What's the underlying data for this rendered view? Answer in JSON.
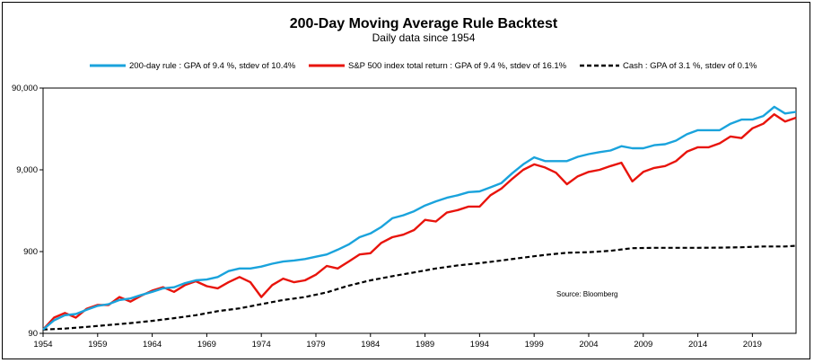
{
  "chart_data": {
    "type": "line",
    "title": "200-Day Moving Average Rule Backtest",
    "subtitle": "Daily data since 1954",
    "xlabel": "",
    "ylabel": "",
    "y_scale": "log",
    "xlim": [
      1954,
      2023
    ],
    "ylim": [
      90,
      90000
    ],
    "x_ticks": [
      "1954",
      "1959",
      "1964",
      "1969",
      "1974",
      "1979",
      "1984",
      "1989",
      "1994",
      "1999",
      "2004",
      "2009",
      "2014",
      "2019"
    ],
    "y_ticks": [
      "90",
      "900",
      "9,000",
      "90,000"
    ],
    "annotation": "Source: Bloomberg",
    "legend_position": "top",
    "grid": false,
    "series": [
      {
        "name": "200-day rule : GPA of 9.4 %, stdev of 10.4%",
        "color": "#1aa3dc",
        "style": "solid",
        "points": [
          [
            1954,
            100
          ],
          [
            1955,
            130
          ],
          [
            1956,
            150
          ],
          [
            1957,
            155
          ],
          [
            1958,
            175
          ],
          [
            1959,
            195
          ],
          [
            1960,
            205
          ],
          [
            1961,
            230
          ],
          [
            1962,
            240
          ],
          [
            1963,
            265
          ],
          [
            1964,
            290
          ],
          [
            1965,
            320
          ],
          [
            1966,
            330
          ],
          [
            1967,
            370
          ],
          [
            1968,
            400
          ],
          [
            1969,
            410
          ],
          [
            1970,
            440
          ],
          [
            1971,
            520
          ],
          [
            1972,
            560
          ],
          [
            1973,
            560
          ],
          [
            1974,
            590
          ],
          [
            1975,
            640
          ],
          [
            1976,
            680
          ],
          [
            1977,
            700
          ],
          [
            1978,
            730
          ],
          [
            1979,
            780
          ],
          [
            1980,
            830
          ],
          [
            1981,
            950
          ],
          [
            1982,
            1100
          ],
          [
            1983,
            1350
          ],
          [
            1984,
            1500
          ],
          [
            1985,
            1800
          ],
          [
            1986,
            2300
          ],
          [
            1987,
            2500
          ],
          [
            1988,
            2800
          ],
          [
            1989,
            3300
          ],
          [
            1990,
            3700
          ],
          [
            1991,
            4100
          ],
          [
            1992,
            4400
          ],
          [
            1993,
            4800
          ],
          [
            1994,
            4900
          ],
          [
            1995,
            5500
          ],
          [
            1996,
            6200
          ],
          [
            1997,
            8200
          ],
          [
            1998,
            10500
          ],
          [
            1999,
            12800
          ],
          [
            2000,
            11500
          ],
          [
            2001,
            11500
          ],
          [
            2002,
            11500
          ],
          [
            2003,
            13000
          ],
          [
            2004,
            14000
          ],
          [
            2005,
            14800
          ],
          [
            2006,
            15500
          ],
          [
            2007,
            17500
          ],
          [
            2008,
            16500
          ],
          [
            2009,
            16500
          ],
          [
            2010,
            18000
          ],
          [
            2011,
            18500
          ],
          [
            2012,
            20500
          ],
          [
            2013,
            24500
          ],
          [
            2014,
            27500
          ],
          [
            2015,
            27500
          ],
          [
            2016,
            27500
          ],
          [
            2017,
            33000
          ],
          [
            2018,
            37000
          ],
          [
            2019,
            37000
          ],
          [
            2020,
            41000
          ],
          [
            2021,
            53000
          ],
          [
            2022,
            44000
          ],
          [
            2023,
            46000
          ]
        ]
      },
      {
        "name": "S&P 500 index total return : GPA of 9.4 %, stdev of 16.1%",
        "color": "#e8140c",
        "style": "solid",
        "points": [
          [
            1954,
            100
          ],
          [
            1955,
            140
          ],
          [
            1956,
            160
          ],
          [
            1957,
            140
          ],
          [
            1958,
            180
          ],
          [
            1959,
            200
          ],
          [
            1960,
            200
          ],
          [
            1961,
            250
          ],
          [
            1962,
            220
          ],
          [
            1963,
            260
          ],
          [
            1964,
            300
          ],
          [
            1965,
            330
          ],
          [
            1966,
            290
          ],
          [
            1967,
            350
          ],
          [
            1968,
            390
          ],
          [
            1969,
            340
          ],
          [
            1970,
            320
          ],
          [
            1971,
            380
          ],
          [
            1972,
            440
          ],
          [
            1973,
            380
          ],
          [
            1974,
            250
          ],
          [
            1975,
            350
          ],
          [
            1976,
            420
          ],
          [
            1977,
            380
          ],
          [
            1978,
            400
          ],
          [
            1979,
            470
          ],
          [
            1980,
            600
          ],
          [
            1981,
            560
          ],
          [
            1982,
            680
          ],
          [
            1983,
            830
          ],
          [
            1984,
            860
          ],
          [
            1985,
            1150
          ],
          [
            1986,
            1350
          ],
          [
            1987,
            1450
          ],
          [
            1988,
            1650
          ],
          [
            1989,
            2200
          ],
          [
            1990,
            2100
          ],
          [
            1991,
            2700
          ],
          [
            1992,
            2900
          ],
          [
            1993,
            3200
          ],
          [
            1994,
            3200
          ],
          [
            1995,
            4400
          ],
          [
            1996,
            5300
          ],
          [
            1997,
            7000
          ],
          [
            1998,
            9000
          ],
          [
            1999,
            10500
          ],
          [
            2000,
            9600
          ],
          [
            2001,
            8300
          ],
          [
            2002,
            6000
          ],
          [
            2003,
            7500
          ],
          [
            2004,
            8500
          ],
          [
            2005,
            9000
          ],
          [
            2006,
            10000
          ],
          [
            2007,
            11000
          ],
          [
            2008,
            6500
          ],
          [
            2009,
            8500
          ],
          [
            2010,
            9500
          ],
          [
            2011,
            10000
          ],
          [
            2012,
            11500
          ],
          [
            2013,
            15000
          ],
          [
            2014,
            17000
          ],
          [
            2015,
            17000
          ],
          [
            2016,
            19000
          ],
          [
            2017,
            23000
          ],
          [
            2018,
            22000
          ],
          [
            2019,
            29000
          ],
          [
            2020,
            33000
          ],
          [
            2021,
            43000
          ],
          [
            2022,
            35000
          ],
          [
            2023,
            39000
          ]
        ]
      },
      {
        "name": "Cash : GPA of 3.1 %, stdev of 0.1%",
        "color": "#000000",
        "style": "dashed",
        "points": [
          [
            1954,
            100
          ],
          [
            1956,
            103
          ],
          [
            1958,
            108
          ],
          [
            1960,
            114
          ],
          [
            1962,
            120
          ],
          [
            1964,
            128
          ],
          [
            1966,
            138
          ],
          [
            1968,
            150
          ],
          [
            1970,
            168
          ],
          [
            1972,
            182
          ],
          [
            1974,
            205
          ],
          [
            1976,
            230
          ],
          [
            1978,
            250
          ],
          [
            1980,
            285
          ],
          [
            1982,
            345
          ],
          [
            1984,
            400
          ],
          [
            1986,
            450
          ],
          [
            1988,
            500
          ],
          [
            1990,
            560
          ],
          [
            1992,
            610
          ],
          [
            1994,
            650
          ],
          [
            1996,
            700
          ],
          [
            1998,
            760
          ],
          [
            2000,
            820
          ],
          [
            2002,
            870
          ],
          [
            2004,
            885
          ],
          [
            2006,
            920
          ],
          [
            2008,
            990
          ],
          [
            2010,
            1000
          ],
          [
            2012,
            1000
          ],
          [
            2014,
            1000
          ],
          [
            2016,
            1005
          ],
          [
            2018,
            1015
          ],
          [
            2020,
            1040
          ],
          [
            2022,
            1040
          ],
          [
            2023,
            1060
          ]
        ]
      }
    ]
  }
}
